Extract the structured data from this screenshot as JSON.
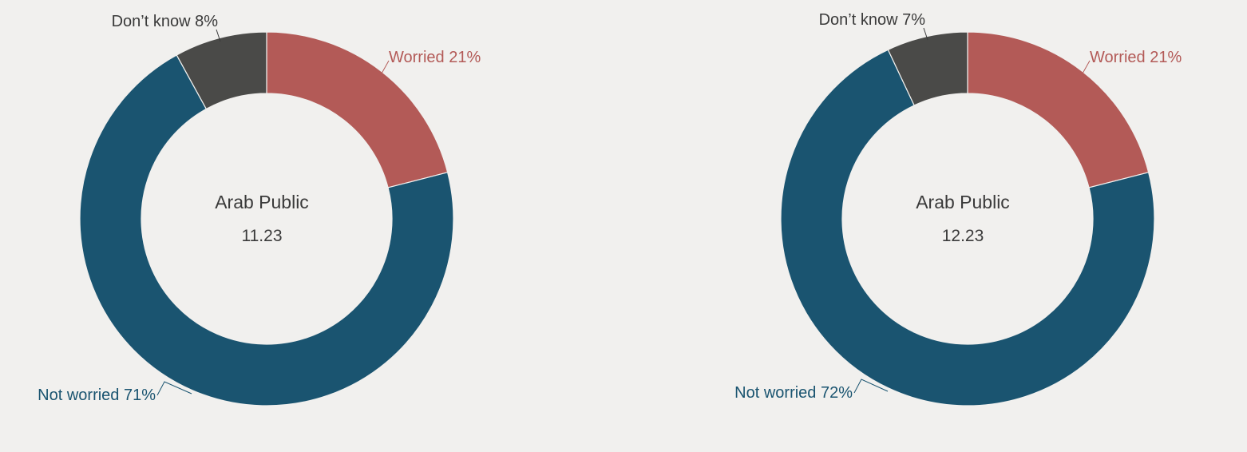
{
  "chart_data": [
    {
      "type": "pie",
      "center_title": "Arab Public",
      "center_subtitle": "11.23",
      "slices": [
        {
          "name": "Worried",
          "value": 21,
          "label": "Worried 21%",
          "color": "#b35a57"
        },
        {
          "name": "Not worried",
          "value": 71,
          "label": "Not worried 71%",
          "color": "#1a5470"
        },
        {
          "name": "Don't know",
          "value": 8,
          "label": "Don’t know 8%",
          "color": "#4a4a48"
        }
      ]
    },
    {
      "type": "pie",
      "center_title": "Arab Public",
      "center_subtitle": "12.23",
      "slices": [
        {
          "name": "Worried",
          "value": 21,
          "label": "Worried 21%",
          "color": "#b35a57"
        },
        {
          "name": "Not worried",
          "value": 72,
          "label": "Not worried 72%",
          "color": "#1a5470"
        },
        {
          "name": "Don't know",
          "value": 7,
          "label": "Don’t know 7%",
          "color": "#4a4a48"
        }
      ]
    }
  ]
}
